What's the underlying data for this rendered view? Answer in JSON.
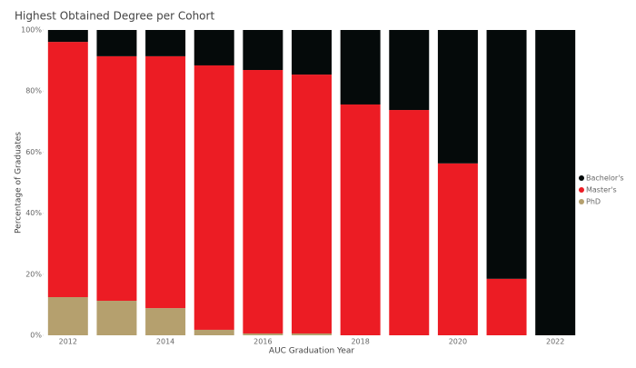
{
  "chart_data": {
    "type": "stacked_bar",
    "title": "Highest Obtained Degree per Cohort",
    "x_label": "AUC Graduation Year",
    "y_label": "Percentage of Graduates",
    "categories": [
      "2012",
      null,
      "2014",
      null,
      "2016",
      null,
      "2018",
      null,
      "2020",
      null,
      "2022"
    ],
    "series": [
      {
        "name": "Bachelor's",
        "color": "#050a0a",
        "values": [
          3.9,
          8.6,
          8.6,
          11.6,
          13.1,
          14.6,
          24.4,
          26.2,
          43.7,
          81.5,
          100
        ]
      },
      {
        "name": "Master's",
        "color": "#ec1c24",
        "values": [
          83.6,
          80.1,
          82.5,
          86.6,
          86.3,
          84.8,
          75.6,
          73.8,
          56.3,
          18.5,
          0
        ]
      },
      {
        "name": "PhD",
        "color": "#b5a06e",
        "values": [
          12.5,
          11.3,
          8.9,
          1.8,
          0.6,
          0.6,
          0,
          0,
          0,
          0,
          0
        ]
      }
    ],
    "ylim": [
      0,
      100
    ],
    "yticks": [
      {
        "value": 0,
        "label": "0%"
      },
      {
        "value": 20,
        "label": "20%"
      },
      {
        "value": 40,
        "label": "40%"
      },
      {
        "value": 60,
        "label": "60%"
      },
      {
        "value": 80,
        "label": "80%"
      },
      {
        "value": 100,
        "label": "100%"
      }
    ],
    "legend": "right"
  }
}
